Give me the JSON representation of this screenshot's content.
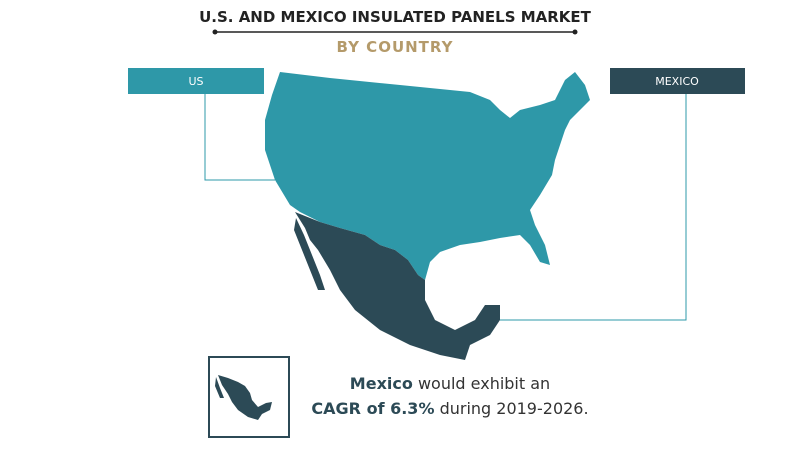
{
  "header": {
    "title": "U.S. AND MEXICO INSULATED PANELS MARKET",
    "subtitle": "BY COUNTRY"
  },
  "labels": {
    "us": "US",
    "mexico": "MEXICO"
  },
  "callout": {
    "line1": {
      "bold": "Mexico",
      "rest": "would exhibit an"
    },
    "line2": {
      "bold": "CAGR of 6.3%",
      "rest": "during 2019-2026."
    }
  }
}
